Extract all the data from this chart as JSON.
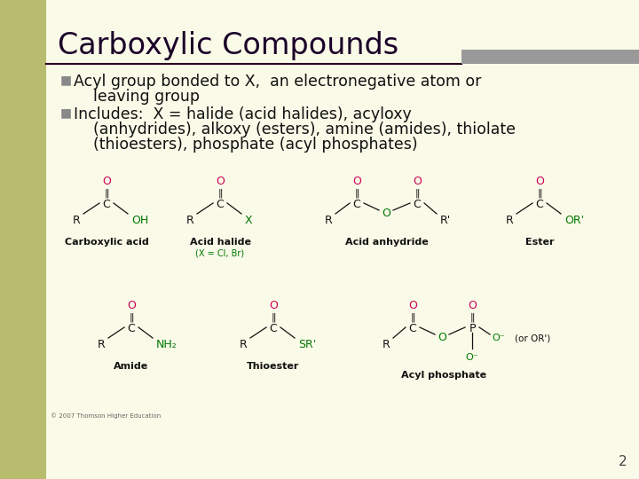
{
  "bg_color": "#FAFAE8",
  "left_bar_color": "#B8BC6E",
  "title": "Carboxylic Compounds",
  "title_color": "#1a0028",
  "title_fontsize": 24,
  "divider_color": "#2a0020",
  "bullet_color": "#888888",
  "bullet1_line1": "Acyl group bonded to X,  an electronegative atom or",
  "bullet1_line2": "    leaving group",
  "bullet2_line1": "Includes:  X = halide (acid halides), acyloxy",
  "bullet2_line2": "    (anhydrides), alkoxy (esters), amine (amides), thiolate",
  "bullet2_line3": "    (thioesters), phosphate (acyl phosphates)",
  "text_color": "#111111",
  "text_fontsize": 12.5,
  "page_number": "2",
  "page_num_color": "#444444",
  "green_color": "#007700",
  "magenta_color": "#cc0055",
  "black_color": "#111111",
  "gray_rect_color": "#999999",
  "label_fontsize": 8,
  "struct_fontsize": 8
}
